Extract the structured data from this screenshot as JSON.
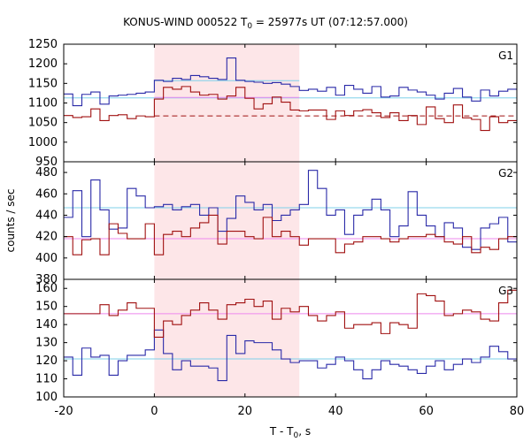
{
  "chart_data": {
    "type": "line",
    "title_prefix": "KONUS-WIND 000522 T",
    "title_sub": "0",
    "title_suffix": " = 25977s UT (07:12:57.000)",
    "ylabel": "counts / sec",
    "xlabel_prefix": "T - T",
    "xlabel_sub": "0",
    "xlabel_suffix": ", s",
    "xlim": [
      -20,
      80
    ],
    "xticks": [
      "-20",
      "0",
      "20",
      "40",
      "60",
      "80"
    ],
    "shaded_interval": [
      0,
      32
    ],
    "colors": {
      "shade": "#fde6e8",
      "blue": "#2a2aa8",
      "red": "#a01010",
      "blue_bg": "#7fd0ea",
      "red_bg": "#ee88ee"
    },
    "x": [
      -20,
      -18,
      -16,
      -14,
      -12,
      -10,
      -8,
      -6,
      -4,
      -2,
      0,
      2,
      4,
      6,
      8,
      10,
      12,
      14,
      16,
      18,
      20,
      22,
      24,
      26,
      28,
      30,
      32,
      34,
      36,
      38,
      40,
      42,
      44,
      46,
      48,
      50,
      52,
      54,
      56,
      58,
      60,
      62,
      64,
      66,
      68,
      70,
      72,
      74,
      76,
      78,
      80
    ],
    "panels": [
      {
        "name": "G1",
        "ylim": [
          950,
          1250
        ],
        "yticks": [
          "950",
          "1000",
          "1050",
          "1100",
          "1150",
          "1200",
          "1250"
        ],
        "series": [
          {
            "color": "blue",
            "values": [
              1123,
              1093,
              1122,
              1128,
              1097,
              1118,
              1120,
              1122,
              1125,
              1128,
              1158,
              1155,
              1163,
              1160,
              1170,
              1167,
              1163,
              1160,
              1215,
              1158,
              1155,
              1153,
              1150,
              1152,
              1148,
              1142,
              1132,
              1135,
              1130,
              1140,
              1120,
              1145,
              1135,
              1125,
              1142,
              1115,
              1118,
              1140,
              1133,
              1128,
              1120,
              1110,
              1125,
              1137,
              1115,
              1105,
              1133,
              1118,
              1130,
              1135
            ]
          },
          {
            "color": "red",
            "values": [
              1068,
              1063,
              1065,
              1085,
              1055,
              1068,
              1070,
              1060,
              1067,
              1065,
              1110,
              1140,
              1135,
              1142,
              1128,
              1120,
              1122,
              1110,
              1118,
              1140,
              1112,
              1085,
              1098,
              1115,
              1102,
              1082,
              1080,
              1082,
              1082,
              1058,
              1080,
              1068,
              1080,
              1083,
              1075,
              1063,
              1075,
              1055,
              1068,
              1045,
              1090,
              1060,
              1050,
              1095,
              1062,
              1058,
              1030,
              1065,
              1050,
              1055
            ]
          }
        ],
        "background": [
          {
            "color": "blue_bg",
            "value": 1113,
            "x": [
              -20,
              80
            ]
          },
          {
            "color": "blue_bg",
            "value": 1157,
            "x": [
              0,
              32
            ]
          },
          {
            "color": "red",
            "value": 1067,
            "x": [
              0,
              80
            ],
            "dashed": true
          },
          {
            "color": "red_bg",
            "value": 1114,
            "x": [
              0,
              32
            ]
          }
        ]
      },
      {
        "name": "G2",
        "ylim": [
          380,
          490
        ],
        "yticks": [
          "380",
          "400",
          "420",
          "440",
          "460",
          "480"
        ],
        "series": [
          {
            "color": "blue",
            "values": [
              438,
              463,
              420,
              473,
              445,
              427,
              428,
              465,
              458,
              447,
              448,
              450,
              445,
              448,
              450,
              440,
              447,
              425,
              437,
              458,
              452,
              445,
              450,
              435,
              440,
              445,
              450,
              482,
              465,
              440,
              445,
              422,
              440,
              445,
              455,
              445,
              420,
              430,
              462,
              440,
              430,
              420,
              433,
              428,
              410,
              408,
              428,
              432,
              438,
              415
            ]
          },
          {
            "color": "red",
            "values": [
              420,
              403,
              417,
              418,
              403,
              432,
              423,
              418,
              418,
              432,
              403,
              422,
              425,
              420,
              428,
              433,
              440,
              413,
              425,
              425,
              420,
              418,
              438,
              420,
              425,
              420,
              412,
              418,
              418,
              418,
              405,
              413,
              415,
              420,
              420,
              418,
              415,
              418,
              420,
              420,
              422,
              420,
              415,
              413,
              420,
              405,
              410,
              408,
              418,
              420
            ]
          }
        ],
        "background": [
          {
            "color": "blue_bg",
            "value": 447,
            "x": [
              -20,
              80
            ]
          },
          {
            "color": "red_bg",
            "value": 418,
            "x": [
              -20,
              80
            ]
          }
        ]
      },
      {
        "name": "G3",
        "ylim": [
          100,
          165
        ],
        "yticks": [
          "100",
          "110",
          "120",
          "130",
          "140",
          "150",
          "160"
        ],
        "series": [
          {
            "color": "blue",
            "values": [
              122,
              112,
              127,
              122,
              123,
              112,
              120,
              123,
              123,
              126,
              137,
              124,
              115,
              120,
              117,
              117,
              116,
              109,
              134,
              124,
              131,
              130,
              130,
              126,
              121,
              119,
              120,
              120,
              116,
              118,
              122,
              120,
              115,
              110,
              115,
              120,
              118,
              117,
              115,
              113,
              117,
              120,
              115,
              118,
              121,
              119,
              122,
              128,
              125,
              121
            ]
          },
          {
            "color": "red",
            "values": [
              146,
              146,
              146,
              146,
              151,
              145,
              148,
              152,
              149,
              149,
              133,
              142,
              140,
              145,
              148,
              152,
              148,
              143,
              151,
              152,
              154,
              150,
              153,
              143,
              149,
              147,
              150,
              145,
              142,
              145,
              147,
              138,
              140,
              140,
              141,
              135,
              141,
              140,
              138,
              157,
              156,
              153,
              145,
              146,
              148,
              147,
              143,
              142,
              152,
              159
            ]
          }
        ],
        "background": [
          {
            "color": "blue_bg",
            "value": 121,
            "x": [
              -20,
              80
            ]
          },
          {
            "color": "red_bg",
            "value": 146,
            "x": [
              -20,
              80
            ]
          }
        ]
      }
    ]
  }
}
